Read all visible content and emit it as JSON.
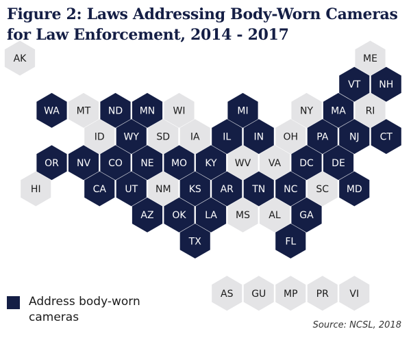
{
  "title": "Figure 2: Laws Addressing Body-Worn Cameras for Law Enforcement, 2014 - 2017",
  "legend": {
    "label": "Address body-worn cameras"
  },
  "source": "Source: NCSL, 2018",
  "colors": {
    "addressed": "#141e45",
    "not_addressed": "#e4e4e6",
    "label_on_dark": "#ffffff",
    "label_on_light": "#1a1a1a"
  },
  "chart_data": {
    "type": "hex tile map",
    "states": [
      {
        "abbr": "AK",
        "row": 0,
        "col": 0,
        "addressed": false
      },
      {
        "abbr": "ME",
        "row": 0,
        "col": 11,
        "addressed": false
      },
      {
        "abbr": "VT",
        "row": 1,
        "col": 10,
        "addressed": true
      },
      {
        "abbr": "NH",
        "row": 1,
        "col": 11,
        "addressed": true
      },
      {
        "abbr": "WA",
        "row": 2,
        "col": 1,
        "addressed": true
      },
      {
        "abbr": "MT",
        "row": 2,
        "col": 2,
        "addressed": false
      },
      {
        "abbr": "ND",
        "row": 2,
        "col": 3,
        "addressed": true
      },
      {
        "abbr": "MN",
        "row": 2,
        "col": 4,
        "addressed": true
      },
      {
        "abbr": "WI",
        "row": 2,
        "col": 5,
        "addressed": false
      },
      {
        "abbr": "MI",
        "row": 2,
        "col": 7,
        "addressed": true
      },
      {
        "abbr": "NY",
        "row": 2,
        "col": 9,
        "addressed": false
      },
      {
        "abbr": "MA",
        "row": 2,
        "col": 10,
        "addressed": true
      },
      {
        "abbr": "RI",
        "row": 2,
        "col": 11,
        "addressed": false
      },
      {
        "abbr": "ID",
        "row": 3,
        "col": 2,
        "addressed": false
      },
      {
        "abbr": "WY",
        "row": 3,
        "col": 3,
        "addressed": true
      },
      {
        "abbr": "SD",
        "row": 3,
        "col": 4,
        "addressed": false
      },
      {
        "abbr": "IA",
        "row": 3,
        "col": 5,
        "addressed": false
      },
      {
        "abbr": "IL",
        "row": 3,
        "col": 6,
        "addressed": true
      },
      {
        "abbr": "IN",
        "row": 3,
        "col": 7,
        "addressed": true
      },
      {
        "abbr": "OH",
        "row": 3,
        "col": 8,
        "addressed": false
      },
      {
        "abbr": "PA",
        "row": 3,
        "col": 9,
        "addressed": true
      },
      {
        "abbr": "NJ",
        "row": 3,
        "col": 10,
        "addressed": true
      },
      {
        "abbr": "CT",
        "row": 3,
        "col": 11,
        "addressed": true
      },
      {
        "abbr": "OR",
        "row": 4,
        "col": 1,
        "addressed": true
      },
      {
        "abbr": "NV",
        "row": 4,
        "col": 2,
        "addressed": true
      },
      {
        "abbr": "CO",
        "row": 4,
        "col": 3,
        "addressed": true
      },
      {
        "abbr": "NE",
        "row": 4,
        "col": 4,
        "addressed": true
      },
      {
        "abbr": "MO",
        "row": 4,
        "col": 5,
        "addressed": true
      },
      {
        "abbr": "KY",
        "row": 4,
        "col": 6,
        "addressed": true
      },
      {
        "abbr": "WV",
        "row": 4,
        "col": 7,
        "addressed": false
      },
      {
        "abbr": "VA",
        "row": 4,
        "col": 8,
        "addressed": false
      },
      {
        "abbr": "DC",
        "row": 4,
        "col": 9,
        "addressed": true
      },
      {
        "abbr": "DE",
        "row": 4,
        "col": 10,
        "addressed": true
      },
      {
        "abbr": "HI",
        "row": 5,
        "col": 0,
        "addressed": false
      },
      {
        "abbr": "CA",
        "row": 5,
        "col": 2,
        "addressed": true
      },
      {
        "abbr": "UT",
        "row": 5,
        "col": 3,
        "addressed": true
      },
      {
        "abbr": "NM",
        "row": 5,
        "col": 4,
        "addressed": false
      },
      {
        "abbr": "KS",
        "row": 5,
        "col": 5,
        "addressed": true
      },
      {
        "abbr": "AR",
        "row": 5,
        "col": 6,
        "addressed": true
      },
      {
        "abbr": "TN",
        "row": 5,
        "col": 7,
        "addressed": true
      },
      {
        "abbr": "NC",
        "row": 5,
        "col": 8,
        "addressed": true
      },
      {
        "abbr": "SC",
        "row": 5,
        "col": 9,
        "addressed": false
      },
      {
        "abbr": "MD",
        "row": 5,
        "col": 10,
        "addressed": true
      },
      {
        "abbr": "AZ",
        "row": 6,
        "col": 4,
        "addressed": true
      },
      {
        "abbr": "OK",
        "row": 6,
        "col": 5,
        "addressed": true
      },
      {
        "abbr": "LA",
        "row": 6,
        "col": 6,
        "addressed": true
      },
      {
        "abbr": "MS",
        "row": 6,
        "col": 7,
        "addressed": false
      },
      {
        "abbr": "AL",
        "row": 6,
        "col": 8,
        "addressed": false
      },
      {
        "abbr": "GA",
        "row": 6,
        "col": 9,
        "addressed": true
      },
      {
        "abbr": "TX",
        "row": 7,
        "col": 5,
        "addressed": true
      },
      {
        "abbr": "FL",
        "row": 7,
        "col": 8,
        "addressed": true
      },
      {
        "abbr": "AS",
        "row": 9,
        "col": 6,
        "addressed": false
      },
      {
        "abbr": "GU",
        "row": 9,
        "col": 7,
        "addressed": false
      },
      {
        "abbr": "MP",
        "row": 9,
        "col": 8,
        "addressed": false
      },
      {
        "abbr": "PR",
        "row": 9,
        "col": 9,
        "addressed": false
      },
      {
        "abbr": "VI",
        "row": 9,
        "col": 10,
        "addressed": false
      }
    ]
  }
}
